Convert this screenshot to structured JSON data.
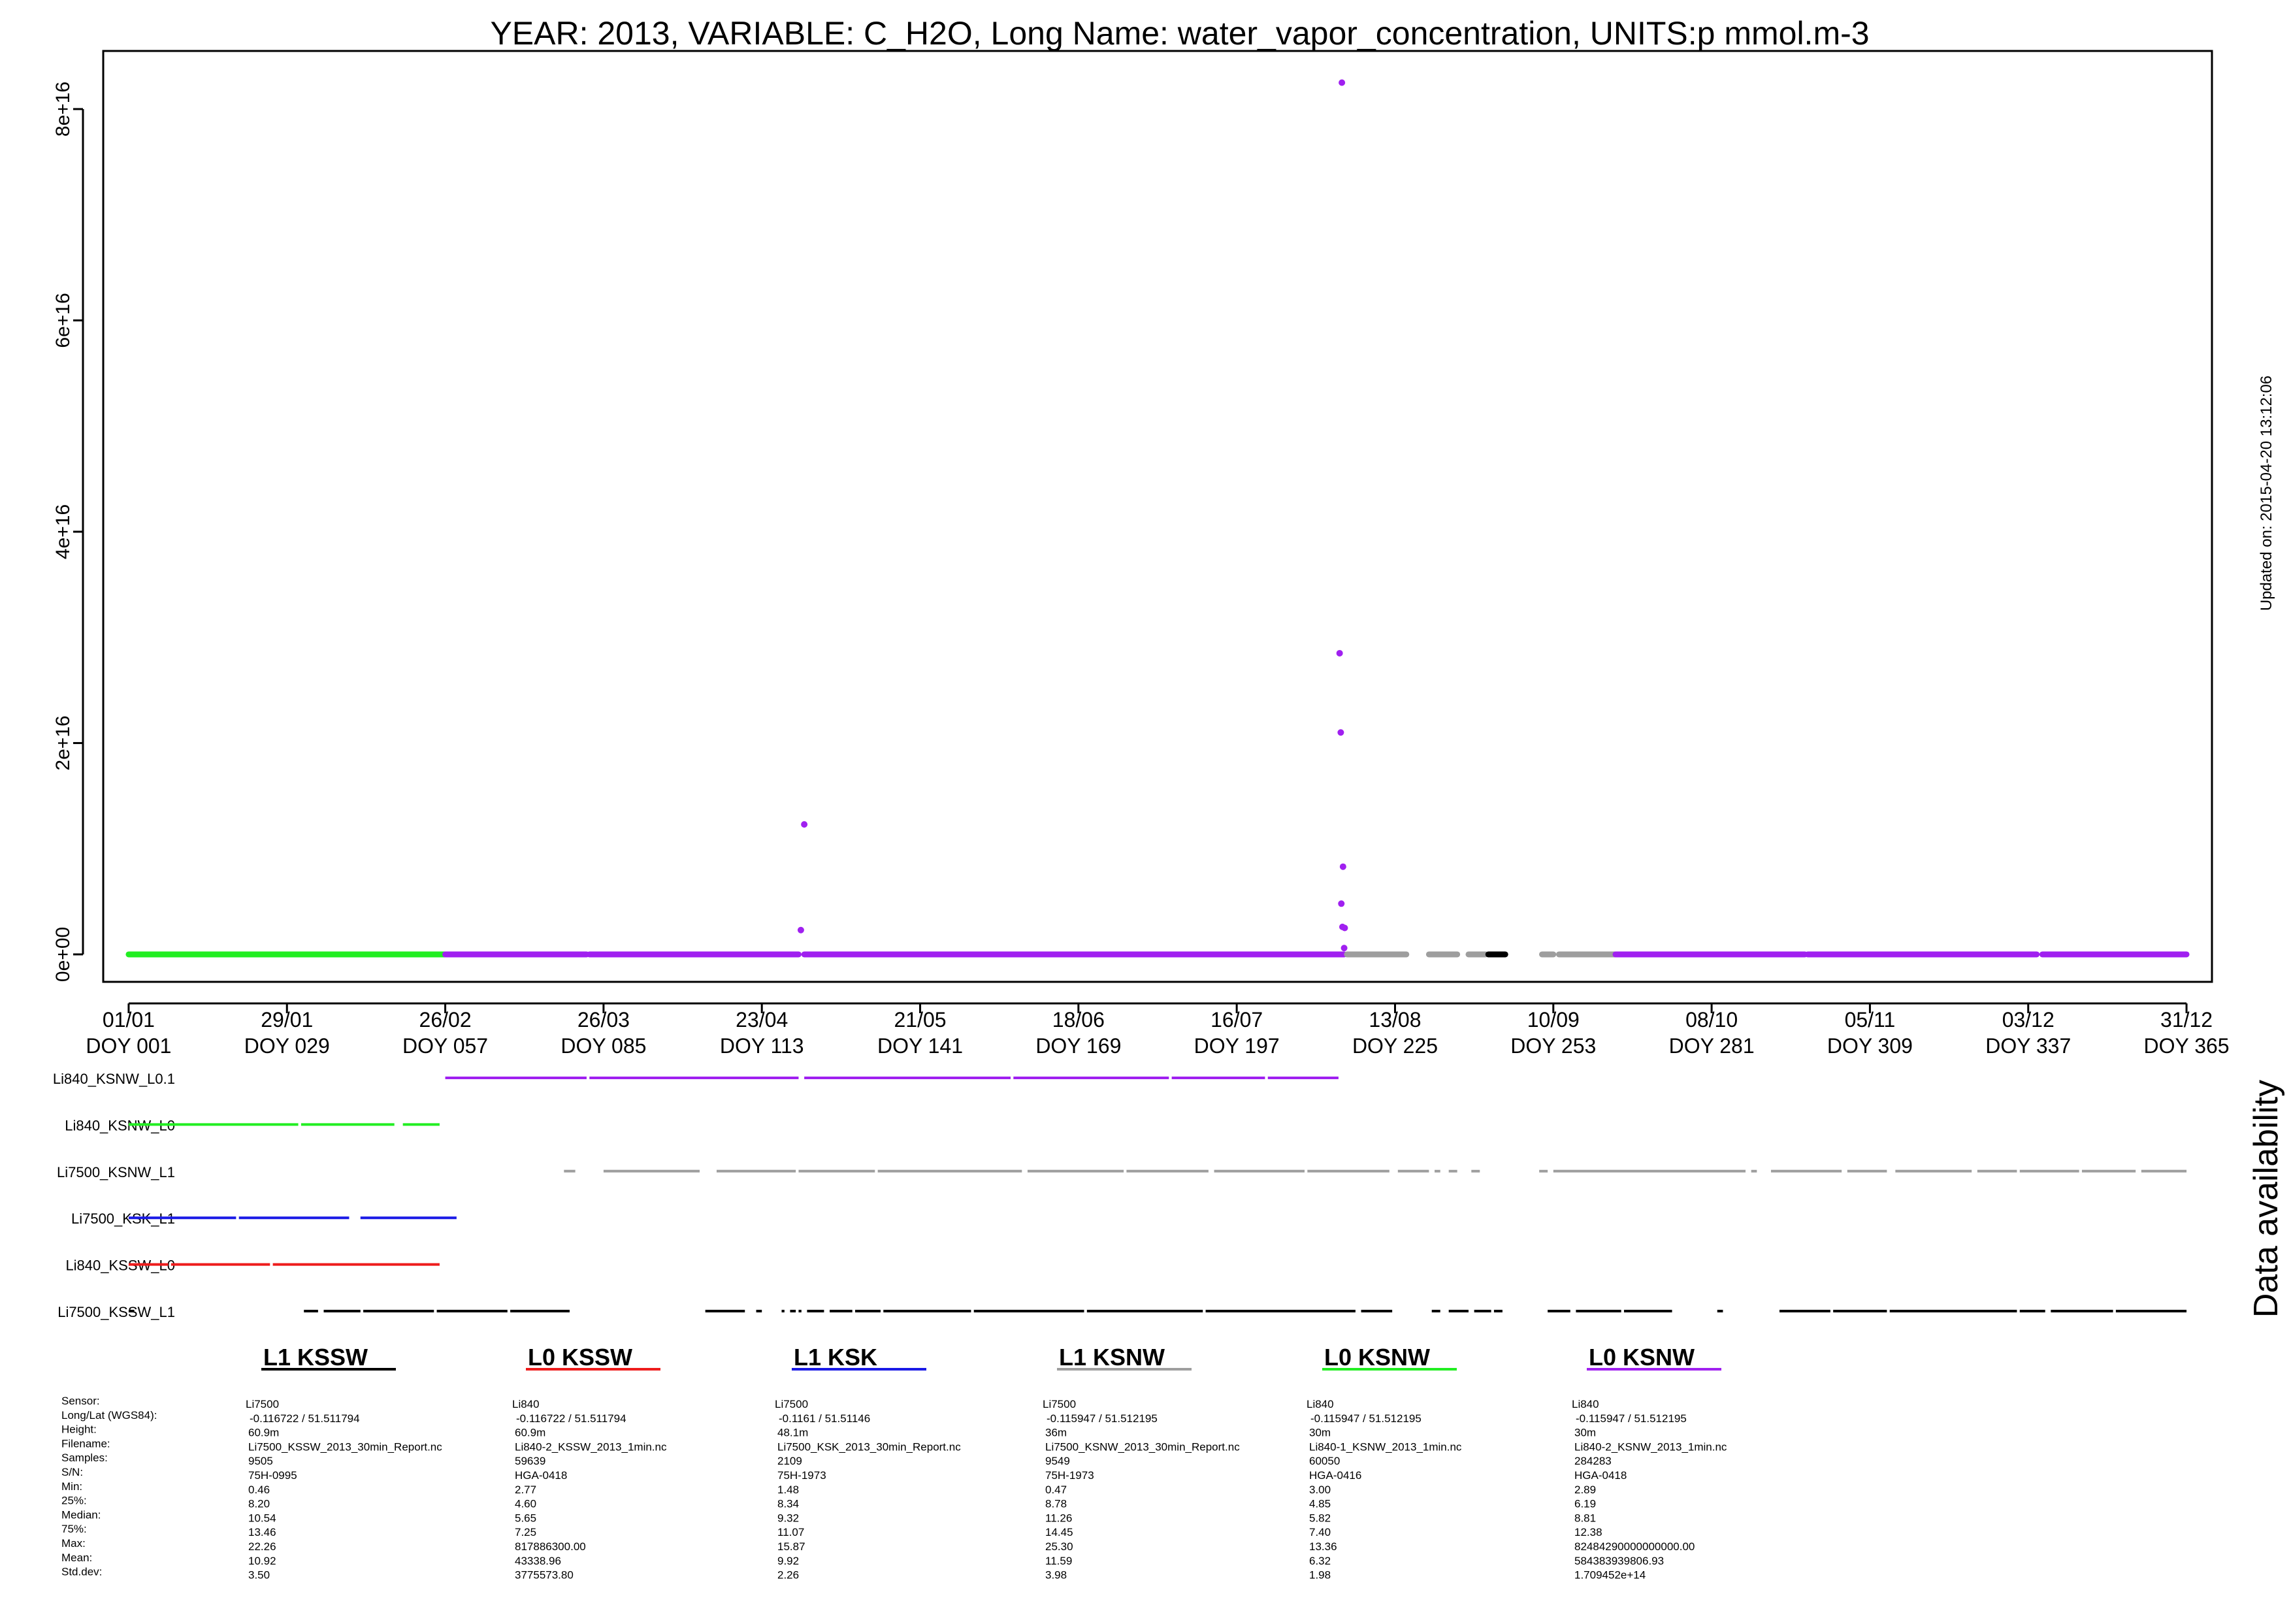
{
  "chart_data": {
    "type": "scatter",
    "title": "YEAR: 2013, VARIABLE: C_H2O, Long Name: water_vapor_concentration, UNITS:p mmol.m-3",
    "updated": "Updated on: 2015-04-20 13:12:06",
    "xlabel": "",
    "ylabel": "",
    "xlim": [
      -3.5,
      369.5
    ],
    "ylim": [
      -2600000000000000.0,
      8.55e+16
    ],
    "grid": false,
    "y_ticks": [
      {
        "value": 0,
        "label": "0e+00"
      },
      {
        "value": 2e+16,
        "label": "2e+16"
      },
      {
        "value": 4e+16,
        "label": "4e+16"
      },
      {
        "value": 6e+16,
        "label": "6e+16"
      },
      {
        "value": 8e+16,
        "label": "8e+16"
      }
    ],
    "x_ticks": [
      {
        "doy": 1,
        "date": "01/01",
        "label": "DOY 001"
      },
      {
        "doy": 29,
        "date": "29/01",
        "label": "DOY 029"
      },
      {
        "doy": 57,
        "date": "26/02",
        "label": "DOY 057"
      },
      {
        "doy": 85,
        "date": "26/03",
        "label": "DOY 085"
      },
      {
        "doy": 113,
        "date": "23/04",
        "label": "DOY 113"
      },
      {
        "doy": 141,
        "date": "21/05",
        "label": "DOY 141"
      },
      {
        "doy": 169,
        "date": "18/06",
        "label": "DOY 169"
      },
      {
        "doy": 197,
        "date": "16/07",
        "label": "DOY 197"
      },
      {
        "doy": 225,
        "date": "13/08",
        "label": "DOY 225"
      },
      {
        "doy": 253,
        "date": "10/09",
        "label": "DOY 253"
      },
      {
        "doy": 281,
        "date": "08/10",
        "label": "DOY 281"
      },
      {
        "doy": 309,
        "date": "05/11",
        "label": "DOY 309"
      },
      {
        "doy": 337,
        "date": "03/12",
        "label": "DOY 337"
      },
      {
        "doy": 365,
        "date": "31/12",
        "label": "DOY 365"
      }
    ],
    "baseline_series": [
      {
        "name": "L0 KSNW (Li840_KSNW_L0)",
        "color": "#22ee22",
        "segments": [
          [
            1,
            57
          ]
        ]
      },
      {
        "name": "L0 KSNW (Li840_KSNW_L0.1)",
        "color": "#a020f0",
        "segments": [
          [
            57,
            82
          ],
          [
            82.5,
            119.5
          ],
          [
            120.5,
            216
          ]
        ]
      },
      {
        "name": "L1 KSNW (Li7500_KSNW_L1)",
        "color": "#9e9e9e",
        "segments": [
          [
            216.5,
            227
          ],
          [
            231,
            236
          ],
          [
            238,
            241
          ],
          [
            242,
            244
          ],
          [
            251,
            253
          ],
          [
            254,
            264
          ]
        ]
      },
      {
        "name": "L1 KSSW (Li7500_KSSW_L1)",
        "color": "#000000",
        "segments": [
          [
            241.5,
            244.5
          ]
        ]
      },
      {
        "name": "L0 KSNW (Li840_KSNW_L0.1)",
        "color": "#a020f0",
        "segments": [
          [
            264,
            297.5
          ],
          [
            298,
            338.5
          ],
          [
            339.5,
            365
          ]
        ]
      }
    ],
    "outlier_points": [
      {
        "doy": 120.5,
        "value": 1.23e+16
      },
      {
        "doy": 119.9,
        "value": 2300000000000000.0
      },
      {
        "doy": 215.6,
        "value": 8.25e+16
      },
      {
        "doy": 215.2,
        "value": 2.85e+16
      },
      {
        "doy": 215.4,
        "value": 2.1e+16
      },
      {
        "doy": 215.8,
        "value": 8300000000000000.0
      },
      {
        "doy": 215.5,
        "value": 4800000000000000.0
      },
      {
        "doy": 215.7,
        "value": 2600000000000000.0
      },
      {
        "doy": 216.1,
        "value": 2500000000000000.0
      },
      {
        "doy": 216.0,
        "value": 600000000000000.0
      }
    ],
    "availability_label": "Data availability",
    "availability": [
      {
        "name": "Li840_KSNW_L0.1",
        "color": "#a020f0",
        "segments": [
          [
            57,
            82
          ],
          [
            82.5,
            119.5
          ],
          [
            120.5,
            157
          ],
          [
            157.5,
            185
          ],
          [
            185.5,
            202
          ],
          [
            202.5,
            215
          ]
        ]
      },
      {
        "name": "Li840_KSNW_L0",
        "color": "#22ee22",
        "segments": [
          [
            1,
            31
          ],
          [
            31.5,
            48
          ],
          [
            49.5,
            56
          ]
        ]
      },
      {
        "name": "Li7500_KSNW_L1",
        "color": "#9e9e9e",
        "segments": [
          [
            78,
            80
          ],
          [
            85,
            102
          ],
          [
            105,
            119
          ],
          [
            119.5,
            133
          ],
          [
            133.5,
            159
          ],
          [
            160,
            177
          ],
          [
            177.5,
            192
          ],
          [
            193,
            209
          ],
          [
            209.5,
            224
          ],
          [
            225.5,
            231
          ],
          [
            232,
            233
          ],
          [
            234.5,
            236
          ],
          [
            238.5,
            240
          ],
          [
            250.5,
            252
          ],
          [
            253,
            287
          ],
          [
            288,
            289
          ],
          [
            291.5,
            304
          ],
          [
            305,
            312
          ],
          [
            313.5,
            327
          ],
          [
            328,
            335
          ],
          [
            335.5,
            346
          ],
          [
            346.5,
            356
          ],
          [
            357,
            365
          ]
        ]
      },
      {
        "name": "Li7500_KSK_L1",
        "color": "#1a1ae6",
        "segments": [
          [
            1,
            20
          ],
          [
            20.5,
            40
          ],
          [
            42,
            59
          ]
        ]
      },
      {
        "name": "Li840_KSSW_L0",
        "color": "#ee1c1c",
        "segments": [
          [
            1,
            8
          ],
          [
            8.5,
            26
          ],
          [
            26.5,
            56
          ]
        ]
      },
      {
        "name": "Li7500_KSSW_L1",
        "color": "#000000",
        "segments": [
          [
            1,
            2
          ],
          [
            32,
            34.5
          ],
          [
            35.5,
            42
          ],
          [
            42.5,
            55
          ],
          [
            55.5,
            68
          ],
          [
            68.5,
            79
          ],
          [
            103,
            110
          ],
          [
            112,
            113
          ],
          [
            116.5,
            117
          ],
          [
            118,
            119
          ],
          [
            119.5,
            120
          ],
          [
            121,
            124
          ],
          [
            125,
            129
          ],
          [
            129.5,
            134
          ],
          [
            134.5,
            150
          ],
          [
            150.5,
            170
          ],
          [
            170.5,
            191
          ],
          [
            191.5,
            218
          ],
          [
            219,
            224.5
          ],
          [
            231.5,
            233
          ],
          [
            234.5,
            238
          ],
          [
            239,
            242
          ],
          [
            242.5,
            244
          ],
          [
            252,
            256
          ],
          [
            257,
            265
          ],
          [
            265.5,
            274
          ],
          [
            282,
            283
          ],
          [
            293,
            302
          ],
          [
            302.5,
            312
          ],
          [
            312.5,
            335
          ],
          [
            335.5,
            340
          ],
          [
            341,
            352
          ],
          [
            352.5,
            365
          ]
        ]
      }
    ]
  },
  "sensor_table": {
    "row_labels": [
      "Sensor:",
      "Long/Lat (WGS84):",
      "Height:",
      "Filename:",
      "Samples:",
      "S/N:",
      "Min:",
      "25%:",
      "Median:",
      "75%:",
      "Max:",
      "Mean:",
      "Std.dev:"
    ],
    "columns": [
      {
        "title": "L1 KSSW",
        "color": "#000000",
        "values": [
          "Li7500",
          "-0.116722 / 51.511794",
          "60.9m",
          "Li7500_KSSW_2013_30min_Report.nc",
          "9505",
          "75H-0995",
          "0.46",
          "8.20",
          "10.54",
          "13.46",
          "22.26",
          "10.92",
          "3.50"
        ]
      },
      {
        "title": "L0 KSSW",
        "color": "#ee1c1c",
        "values": [
          "Li840",
          "-0.116722 / 51.511794",
          "60.9m",
          "Li840-2_KSSW_2013_1min.nc",
          "59639",
          "HGA-0418",
          "2.77",
          "4.60",
          "5.65",
          "7.25",
          "817886300.00",
          "43338.96",
          "3775573.80"
        ]
      },
      {
        "title": "L1 KSK",
        "color": "#1a1ae6",
        "values": [
          "Li7500",
          "-0.1161 / 51.51146",
          "48.1m",
          "Li7500_KSK_2013_30min_Report.nc",
          "2109",
          "75H-1973",
          "1.48",
          "8.34",
          "9.32",
          "11.07",
          "15.87",
          "9.92",
          "2.26"
        ]
      },
      {
        "title": "L1 KSNW",
        "color": "#9e9e9e",
        "values": [
          "Li7500",
          "-0.115947 / 51.512195",
          "36m",
          "Li7500_KSNW_2013_30min_Report.nc",
          "9549",
          "75H-1973",
          "0.47",
          "8.78",
          "11.26",
          "14.45",
          "25.30",
          "11.59",
          "3.98"
        ]
      },
      {
        "title": "L0 KSNW",
        "color": "#22ee22",
        "values": [
          "Li840",
          "-0.115947 / 51.512195",
          "30m",
          "Li840-1_KSNW_2013_1min.nc",
          "60050",
          "HGA-0416",
          "3.00",
          "4.85",
          "5.82",
          "7.40",
          "13.36",
          "6.32",
          "1.98"
        ]
      },
      {
        "title": "L0 KSNW",
        "color": "#a020f0",
        "values": [
          "Li840",
          "-0.115947 / 51.512195",
          "30m",
          "Li840-2_KSNW_2013_1min.nc",
          "284283",
          "HGA-0418",
          "2.89",
          "6.19",
          "8.81",
          "12.38",
          "82484290000000000.00",
          "584383939806.93",
          "1.709452e+14"
        ]
      }
    ]
  }
}
